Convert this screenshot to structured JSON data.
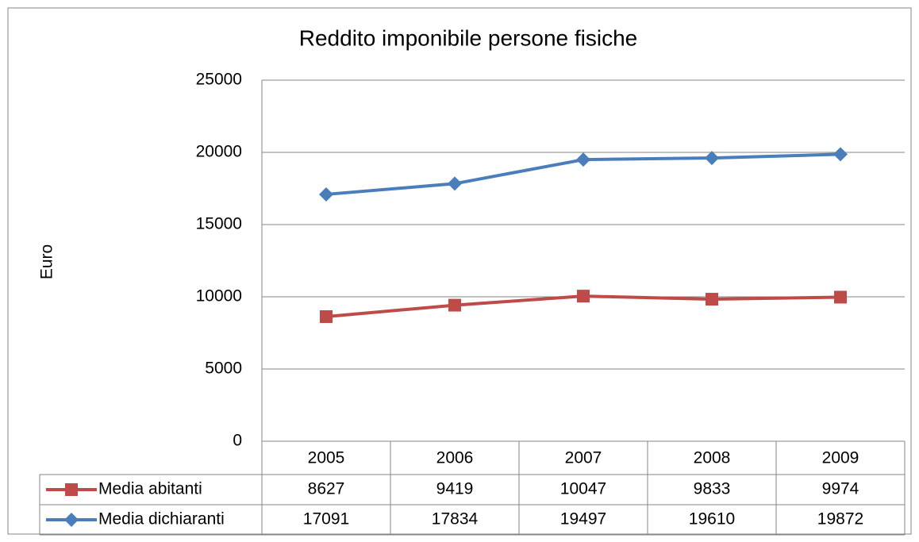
{
  "chart_data": {
    "type": "line",
    "title": "Reddito imponibile persone fisiche",
    "y_label": "Euro",
    "categories": [
      "2005",
      "2006",
      "2007",
      "2008",
      "2009"
    ],
    "series": [
      {
        "name": "Media abitanti",
        "color": "#be4b48",
        "marker": "square",
        "values": [
          8627,
          9419,
          10047,
          9833,
          9974
        ]
      },
      {
        "name": "Media dichiaranti",
        "color": "#4a7ebb",
        "marker": "diamond",
        "values": [
          17091,
          17834,
          19497,
          19610,
          19872
        ]
      }
    ],
    "ylim": [
      0,
      25000
    ],
    "yticks": [
      0,
      5000,
      10000,
      15000,
      20000,
      25000
    ],
    "grid": true,
    "data_table": true
  }
}
